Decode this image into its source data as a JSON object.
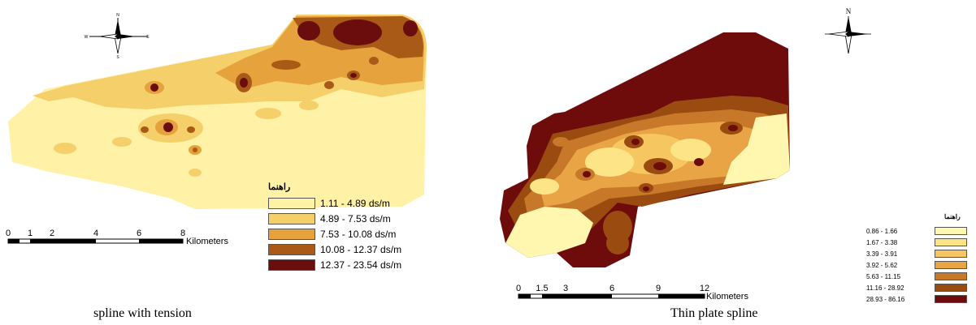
{
  "left_map": {
    "caption": "spline with tension",
    "legend": {
      "title": "راهنما",
      "items": [
        {
          "label": "1.11 - 4.89 ds/m",
          "color": "#fff1a6"
        },
        {
          "label": "4.89 - 7.53 ds/m",
          "color": "#f5cf6a"
        },
        {
          "label": "7.53 - 10.08 ds/m",
          "color": "#e6a23c"
        },
        {
          "label": "10.08 - 12.37 ds/m",
          "color": "#a85a16"
        },
        {
          "label": "12.37 - 23.54 ds/m",
          "color": "#6b0d0d"
        }
      ]
    },
    "scale": {
      "ticks": [
        "0",
        "1",
        "2",
        "4",
        "6",
        "8"
      ],
      "unit": "Kilometers"
    },
    "compass": {
      "n": "N",
      "s": "S",
      "e": "E",
      "w": "W"
    }
  },
  "right_map": {
    "caption": "Thin plate spline",
    "legend": {
      "title": "راهنما",
      "items": [
        {
          "label": "0.86 - 1.66",
          "color": "#fff6b0"
        },
        {
          "label": "1.67 - 3.38",
          "color": "#fde587"
        },
        {
          "label": "3.39 - 3.91",
          "color": "#f6c660"
        },
        {
          "label": "3.92 - 5.62",
          "color": "#e9a545"
        },
        {
          "label": "5.63 - 11.15",
          "color": "#c77828"
        },
        {
          "label": "11.16 - 28.92",
          "color": "#9a4b10"
        },
        {
          "label": "28.93 - 86.16",
          "color": "#6e0b0b"
        }
      ]
    },
    "scale": {
      "ticks": [
        "0",
        "1.5",
        "3",
        "6",
        "9",
        "12"
      ],
      "unit": "Kilometers"
    },
    "compass": {
      "n": "N"
    }
  }
}
